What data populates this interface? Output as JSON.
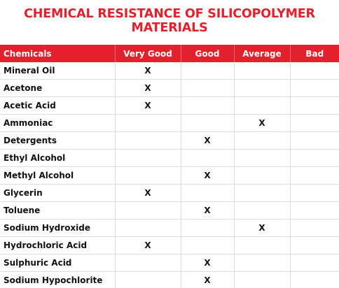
{
  "title": "CHEMICAL RESISTANCE OF SILICOPOLYMER MATERIALS",
  "accent_color": "#e3202b",
  "mark_symbol": "X",
  "columns": [
    "Chemicals",
    "Very Good",
    "Good",
    "Average",
    "Bad"
  ],
  "rows": [
    {
      "name": "Mineral Oil",
      "rating": "Very Good"
    },
    {
      "name": "Acetone",
      "rating": "Very Good"
    },
    {
      "name": "Acetic Acid",
      "rating": "Very Good"
    },
    {
      "name": "Ammoniac",
      "rating": "Average"
    },
    {
      "name": "Detergents",
      "rating": "Good"
    },
    {
      "name": "Ethyl Alcohol",
      "rating": ""
    },
    {
      "name": "Methyl Alcohol",
      "rating": "Good"
    },
    {
      "name": "Glycerin",
      "rating": "Very Good"
    },
    {
      "name": "Toluene",
      "rating": "Good"
    },
    {
      "name": "Sodium Hydroxide",
      "rating": "Average"
    },
    {
      "name": "Hydrochloric Acid",
      "rating": "Very Good"
    },
    {
      "name": "Sulphuric Acid",
      "rating": "Good"
    },
    {
      "name": "Sodium Hypochlorite",
      "rating": "Good"
    }
  ]
}
